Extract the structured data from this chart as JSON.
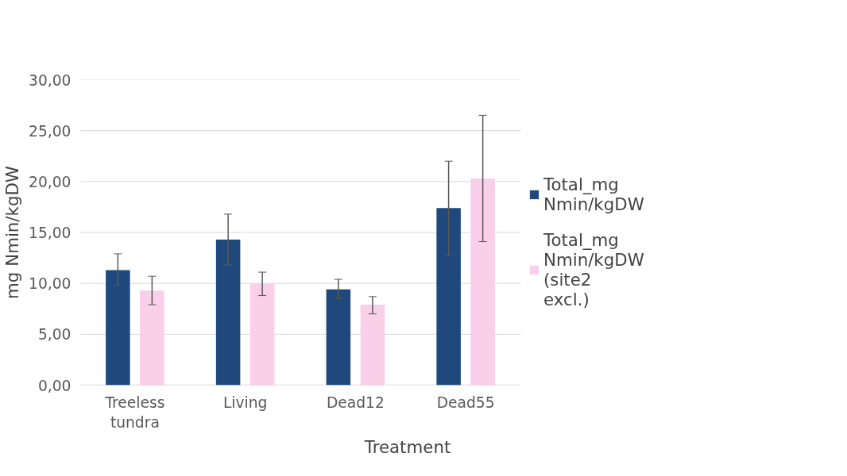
{
  "chart_data": {
    "type": "bar",
    "xlabel": "Treatment",
    "ylabel": "mg Nmin/kgDW",
    "categories": [
      "Treeless tundra",
      "Living",
      "Dead12",
      "Dead55"
    ],
    "series": [
      {
        "name": "Total_mg Nmin/kgDW",
        "color": "#1f497d",
        "values": [
          11.3,
          14.3,
          9.4,
          17.4
        ],
        "errors": [
          [
            9.8,
            12.9
          ],
          [
            11.8,
            16.8
          ],
          [
            8.5,
            10.4
          ],
          [
            12.7,
            22.0
          ]
        ]
      },
      {
        "name": "Total_mg Nmin/kgDW (site2 excl.)",
        "color": "#f9cfe9",
        "values": [
          9.3,
          10.0,
          7.9,
          20.3
        ],
        "errors": [
          [
            7.9,
            10.7
          ],
          [
            8.8,
            11.1
          ],
          [
            7.0,
            8.7
          ],
          [
            14.1,
            26.5
          ]
        ]
      }
    ],
    "ylim": [
      0,
      30
    ],
    "yticks": [
      {
        "value": 0,
        "label": "0,00"
      },
      {
        "value": 5,
        "label": "5,00"
      },
      {
        "value": 10,
        "label": "10,00"
      },
      {
        "value": 15,
        "label": "15,00"
      },
      {
        "value": 20,
        "label": "20,00"
      },
      {
        "value": 25,
        "label": "25,00"
      },
      {
        "value": 30,
        "label": "30,00"
      }
    ],
    "grid": "y",
    "legend": "right"
  }
}
